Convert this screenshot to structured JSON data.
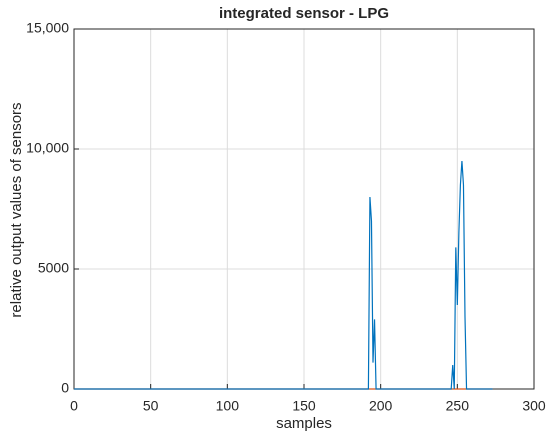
{
  "chart_data": {
    "type": "line",
    "title": "integrated sensor - LPG",
    "x_label": "samples",
    "y_label": "relative output values of sensors",
    "xlim": [
      0,
      300
    ],
    "xticks": [
      0,
      50,
      100,
      150,
      200,
      250,
      300
    ],
    "ylim": [
      0,
      15000
    ],
    "yticks": [
      0,
      5000,
      {
        "value": 10000,
        "label": "10,000"
      },
      {
        "value": 15000,
        "label": "15,000"
      }
    ],
    "grid": true,
    "series": [
      {
        "color": "#d95319",
        "x": [
          0,
          273
        ],
        "values": [
          0,
          0
        ]
      },
      {
        "color": "#0072bd",
        "x": [
          0,
          191,
          192,
          193,
          194,
          195,
          196,
          197,
          246,
          247,
          248,
          249,
          250,
          251,
          252,
          253,
          254,
          255,
          256,
          273
        ],
        "values": [
          0,
          0,
          0,
          8000,
          7000,
          1100,
          2900,
          0,
          0,
          1000,
          0,
          5900,
          3500,
          6500,
          8500,
          9500,
          8500,
          3000,
          0,
          0
        ]
      }
    ]
  }
}
